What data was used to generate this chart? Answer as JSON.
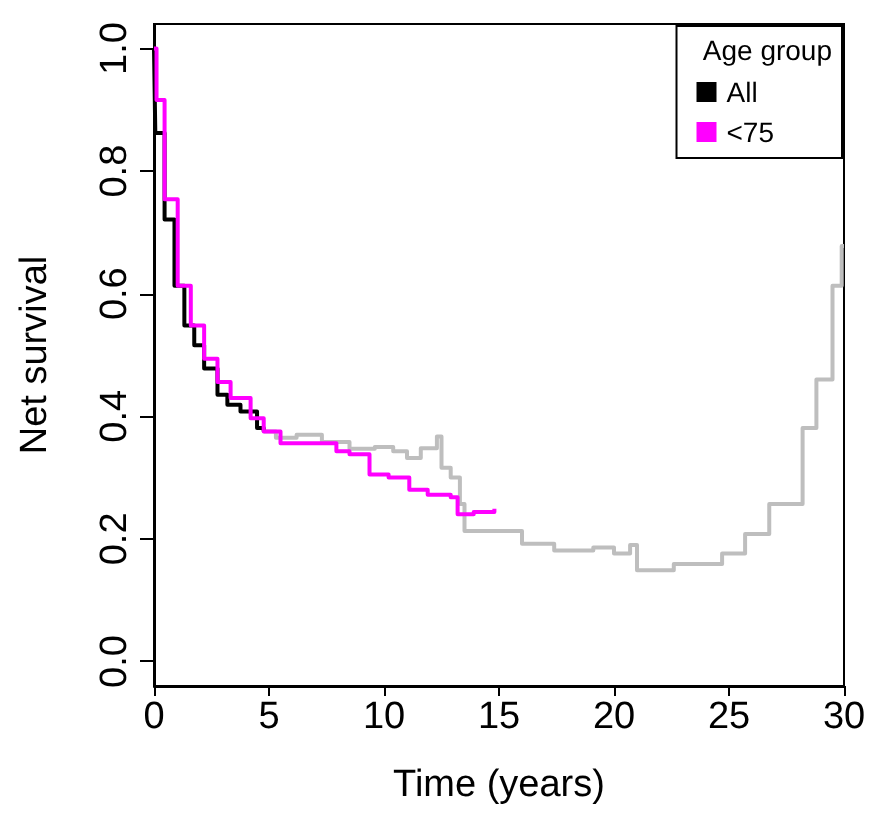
{
  "chart_data": {
    "type": "step",
    "xlabel": "Time (years)",
    "ylabel": "Net survival",
    "legend_title": "Age group",
    "legend": "top right",
    "grid": false,
    "marker": "none",
    "line_style": "solid",
    "xlim": [
      0,
      30
    ],
    "xticks": [
      0,
      5,
      10,
      15,
      20,
      25,
      30
    ],
    "ylim": [
      -0.04,
      1.04
    ],
    "yticks": [
      {
        "value": 0,
        "label": "0.0"
      },
      0.2,
      0.4,
      0.6,
      0.8,
      {
        "value": 1,
        "label": "1.0"
      }
    ],
    "series": [
      {
        "color": "#bebebe",
        "x": [
          4.77,
          5.3,
          6.2,
          7.3,
          8.5,
          9.6,
          10.4,
          11.0,
          11.6,
          12.3,
          12.5,
          12.9,
          13.3,
          13.5,
          14.5,
          16.0,
          17.4,
          19.1,
          20.0,
          20.7,
          21.0,
          22.6,
          24.0,
          24.7,
          25.7,
          26.75,
          28.2,
          28.8,
          29.5,
          29.9,
          30
        ],
        "values": [
          0.375,
          0.365,
          0.37,
          0.358,
          0.347,
          0.35,
          0.343,
          0.332,
          0.348,
          0.367,
          0.316,
          0.3,
          0.257,
          0.213,
          0.213,
          0.192,
          0.181,
          0.186,
          0.176,
          0.19,
          0.149,
          0.159,
          0.159,
          0.176,
          0.208,
          0.257,
          0.381,
          0.46,
          0.613,
          0.678,
          0.678
        ]
      },
      {
        "name": "All",
        "color": "#000000",
        "x": [
          0,
          0.057,
          0.46,
          0.89,
          1.32,
          1.75,
          2.18,
          2.76,
          3.19,
          3.76,
          4.48,
          4.77
        ],
        "values": [
          1.0,
          0.862,
          0.721,
          0.613,
          0.548,
          0.516,
          0.478,
          0.435,
          0.419,
          0.408,
          0.381,
          0.375
        ]
      },
      {
        "name": "<75",
        "color": "#ff00ff",
        "x": [
          0,
          0.11,
          0.46,
          1.03,
          1.6,
          2.18,
          2.76,
          3.33,
          4.2,
          4.77,
          5.5,
          6.78,
          7.93,
          8.5,
          9.37,
          10.2,
          11.1,
          11.9,
          12.9,
          13.2,
          13.9,
          14.8
        ],
        "values": [
          1.0,
          0.916,
          0.754,
          0.613,
          0.548,
          0.494,
          0.456,
          0.43,
          0.397,
          0.375,
          0.356,
          0.356,
          0.343,
          0.338,
          0.305,
          0.3,
          0.28,
          0.272,
          0.268,
          0.24,
          0.244,
          0.249
        ]
      }
    ]
  }
}
